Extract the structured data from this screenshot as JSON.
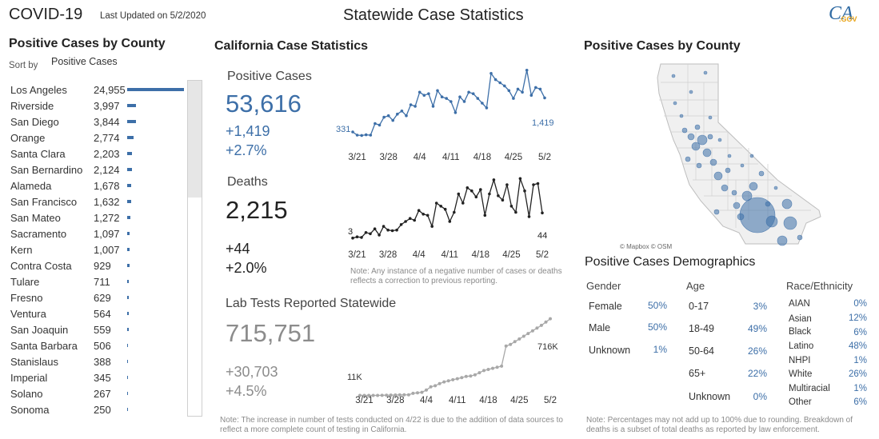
{
  "header": {
    "app_title": "COVID-19",
    "last_updated": "Last Updated on 5/2/2020",
    "center_title": "Statewide Case Statistics",
    "logo_text": "CA",
    "logo_suffix": ".GOV"
  },
  "left_panel": {
    "title": "Positive Cases by County",
    "sort_label": "Sort by",
    "sort_value": "Positive Cases",
    "counties": [
      {
        "name": "Los Angeles",
        "value": "24,955",
        "num": 24955
      },
      {
        "name": "Riverside",
        "value": "3,997",
        "num": 3997
      },
      {
        "name": "San Diego",
        "value": "3,844",
        "num": 3844
      },
      {
        "name": "Orange",
        "value": "2,774",
        "num": 2774
      },
      {
        "name": "Santa Clara",
        "value": "2,203",
        "num": 2203
      },
      {
        "name": "San Bernardino",
        "value": "2,124",
        "num": 2124
      },
      {
        "name": "Alameda",
        "value": "1,678",
        "num": 1678
      },
      {
        "name": "San Francisco",
        "value": "1,632",
        "num": 1632
      },
      {
        "name": "San Mateo",
        "value": "1,272",
        "num": 1272
      },
      {
        "name": "Sacramento",
        "value": "1,097",
        "num": 1097
      },
      {
        "name": "Kern",
        "value": "1,007",
        "num": 1007
      },
      {
        "name": "Contra Costa",
        "value": "929",
        "num": 929
      },
      {
        "name": "Tulare",
        "value": "711",
        "num": 711
      },
      {
        "name": "Fresno",
        "value": "629",
        "num": 629
      },
      {
        "name": "Ventura",
        "value": "564",
        "num": 564
      },
      {
        "name": "San Joaquin",
        "value": "559",
        "num": 559
      },
      {
        "name": "Santa Barbara",
        "value": "506",
        "num": 506
      },
      {
        "name": "Stanislaus",
        "value": "388",
        "num": 388
      },
      {
        "name": "Imperial",
        "value": "345",
        "num": 345
      },
      {
        "name": "Solano",
        "value": "267",
        "num": 267
      },
      {
        "name": "Sonoma",
        "value": "250",
        "num": 250
      }
    ]
  },
  "stats": {
    "title": "California Case Statistics",
    "cases": {
      "label": "Positive Cases",
      "total": "53,616",
      "change": "+1,419",
      "pct": "+2.7%",
      "first_label": "331",
      "last_label": "1,419"
    },
    "deaths": {
      "label": "Deaths",
      "total": "2,215",
      "change": "+44",
      "pct": "+2.0%",
      "first_label": "3",
      "last_label": "44"
    },
    "tests": {
      "label": "Lab Tests Reported Statewide",
      "total": "715,751",
      "change": "+30,703",
      "pct": "+4.5%",
      "first_label": "11K",
      "last_label": "716K"
    },
    "x_ticks": [
      "3/21",
      "3/28",
      "4/4",
      "4/11",
      "4/18",
      "4/25",
      "5/2"
    ],
    "deaths_note": "Note: Any instance of a negative number of cases or deaths reflects a correction to previous reporting.",
    "tests_note": "Note: The increase in number of tests conducted on 4/22 is due to the addition of data sources to reflect a more complete count of testing in California."
  },
  "chart_data": [
    {
      "type": "line",
      "title": "Positive Cases",
      "x": [
        "3/20",
        "3/21",
        "3/22",
        "3/23",
        "3/24",
        "3/25",
        "3/26",
        "3/27",
        "3/28",
        "3/29",
        "3/30",
        "3/31",
        "4/1",
        "4/2",
        "4/3",
        "4/4",
        "4/5",
        "4/6",
        "4/7",
        "4/8",
        "4/9",
        "4/10",
        "4/11",
        "4/12",
        "4/13",
        "4/14",
        "4/15",
        "4/16",
        "4/17",
        "4/18",
        "4/19",
        "4/20",
        "4/21",
        "4/22",
        "4/23",
        "4/24",
        "4/25",
        "4/26",
        "4/27",
        "4/28",
        "4/29",
        "4/30",
        "5/1",
        "5/2"
      ],
      "values": [
        331,
        230,
        220,
        240,
        230,
        600,
        550,
        800,
        850,
        700,
        900,
        1000,
        850,
        1200,
        1150,
        1600,
        1500,
        1550,
        1150,
        1650,
        1450,
        1400,
        1300,
        950,
        1450,
        1300,
        1600,
        1550,
        1400,
        1250,
        1100,
        2200,
        2000,
        1900,
        1800,
        1650,
        1400,
        1700,
        1600,
        2300,
        1500,
        1750,
        1700,
        1419
      ],
      "ylim": [
        0,
        2500
      ]
    },
    {
      "type": "line",
      "title": "Deaths",
      "x": [
        "3/20",
        "3/21",
        "3/22",
        "3/23",
        "3/24",
        "3/25",
        "3/26",
        "3/27",
        "3/28",
        "3/29",
        "3/30",
        "3/31",
        "4/1",
        "4/2",
        "4/3",
        "4/4",
        "4/5",
        "4/6",
        "4/7",
        "4/8",
        "4/9",
        "4/10",
        "4/11",
        "4/12",
        "4/13",
        "4/14",
        "4/15",
        "4/16",
        "4/17",
        "4/18",
        "4/19",
        "4/20",
        "4/21",
        "4/22",
        "4/23",
        "4/24",
        "4/25",
        "4/26",
        "4/27",
        "4/28",
        "4/29",
        "4/30",
        "5/1",
        "5/2"
      ],
      "values": [
        3,
        5,
        4,
        12,
        10,
        18,
        8,
        22,
        16,
        15,
        16,
        25,
        30,
        35,
        32,
        48,
        42,
        40,
        22,
        60,
        55,
        50,
        30,
        45,
        75,
        60,
        85,
        80,
        70,
        82,
        40,
        75,
        98,
        72,
        65,
        90,
        55,
        45,
        100,
        80,
        38,
        90,
        92,
        44
      ],
      "ylim": [
        0,
        120
      ]
    },
    {
      "type": "line",
      "title": "Lab Tests Reported Statewide",
      "x": [
        "3/20",
        "3/21",
        "3/22",
        "3/23",
        "3/24",
        "3/25",
        "3/26",
        "3/27",
        "3/28",
        "3/29",
        "3/30",
        "3/31",
        "4/1",
        "4/2",
        "4/3",
        "4/4",
        "4/5",
        "4/6",
        "4/7",
        "4/8",
        "4/9",
        "4/10",
        "4/11",
        "4/12",
        "4/13",
        "4/14",
        "4/15",
        "4/16",
        "4/17",
        "4/18",
        "4/19",
        "4/20",
        "4/21",
        "4/22",
        "4/23",
        "4/24",
        "4/25",
        "4/26",
        "4/27",
        "4/28",
        "4/29",
        "4/30",
        "5/1",
        "5/2"
      ],
      "values": [
        11000,
        11000,
        11000,
        11000,
        11000,
        12000,
        13000,
        14000,
        15000,
        15500,
        16000,
        17000,
        30000,
        35000,
        40000,
        60000,
        90000,
        100000,
        120000,
        135000,
        145000,
        155000,
        165000,
        175000,
        185000,
        190000,
        200000,
        220000,
        240000,
        250000,
        260000,
        270000,
        280000,
        465000,
        480000,
        505000,
        530000,
        555000,
        580000,
        605000,
        630000,
        655000,
        685000,
        716000
      ],
      "ylim": [
        0,
        750000
      ]
    }
  ],
  "map": {
    "title": "Positive Cases by County",
    "credit": "© Mapbox © OSM",
    "land_color": "#f0f0f0",
    "bubble_color": "#3d6fa8"
  },
  "demographics": {
    "title": "Positive Cases Demographics",
    "gender": {
      "header": "Gender",
      "rows": [
        {
          "label": "Female",
          "value": "50%"
        },
        {
          "label": "Male",
          "value": "50%"
        },
        {
          "label": "Unknown",
          "value": "1%"
        }
      ]
    },
    "age": {
      "header": "Age",
      "rows": [
        {
          "label": "0-17",
          "value": "3%"
        },
        {
          "label": "18-49",
          "value": "49%"
        },
        {
          "label": "50-64",
          "value": "26%"
        },
        {
          "label": "65+",
          "value": "22%"
        },
        {
          "label": "Unknown",
          "value": "0%"
        }
      ]
    },
    "race": {
      "header": "Race/Ethnicity",
      "rows": [
        {
          "label": "AIAN",
          "value": "0%"
        },
        {
          "label": "Asian",
          "value": "12%"
        },
        {
          "label": "Black",
          "value": "6%"
        },
        {
          "label": "Latino",
          "value": "48%"
        },
        {
          "label": "NHPI",
          "value": "1%"
        },
        {
          "label": "White",
          "value": "26%"
        },
        {
          "label": "Multiracial",
          "value": "1%"
        },
        {
          "label": "Other",
          "value": "6%"
        }
      ]
    },
    "note": "Note: Percentages may not add up to 100% due to rounding. Breakdown of deaths is a subset of total deaths as reported by law enforcement."
  },
  "colors": {
    "accent_blue": "#3d6fa8",
    "dark": "#222222",
    "gray_series": "#a8a8a8"
  }
}
